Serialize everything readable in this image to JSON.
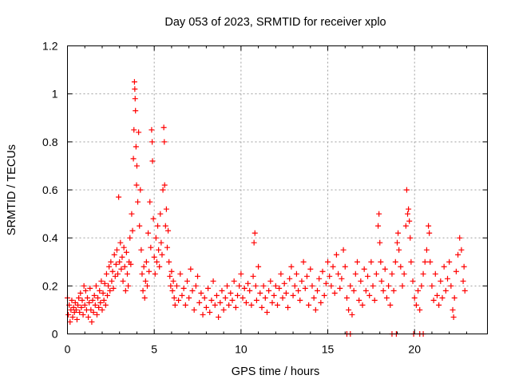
{
  "chart_data": {
    "type": "scatter",
    "title": "Day 053 of 2023, SRMTID for receiver xplo",
    "xlabel": "GPS time / hours",
    "ylabel": "SRMTID / TECUs",
    "xlim": [
      0,
      24.2
    ],
    "ylim": [
      0,
      1.2
    ],
    "x_ticks": [
      0,
      5,
      10,
      15,
      20
    ],
    "x_tick_labels": [
      "0",
      "5",
      "10",
      "15",
      "20"
    ],
    "y_ticks": [
      0,
      0.2,
      0.4,
      0.6,
      0.8,
      1.0,
      1.2
    ],
    "y_tick_labels": [
      "0",
      "0.2",
      "0.4",
      "0.6",
      "0.8",
      "1",
      "1.2"
    ],
    "grid": true,
    "marker": "plus",
    "color": "#ff0000",
    "series": [
      {
        "name": "SRMTID",
        "points": [
          [
            0.0,
            0.15
          ],
          [
            0.05,
            0.08
          ],
          [
            0.1,
            0.12
          ],
          [
            0.15,
            0.05
          ],
          [
            0.2,
            0.1
          ],
          [
            0.25,
            0.14
          ],
          [
            0.3,
            0.07
          ],
          [
            0.35,
            0.11
          ],
          [
            0.4,
            0.09
          ],
          [
            0.45,
            0.13
          ],
          [
            0.5,
            0.1
          ],
          [
            0.55,
            0.06
          ],
          [
            0.6,
            0.12
          ],
          [
            0.65,
            0.15
          ],
          [
            0.7,
            0.09
          ],
          [
            0.75,
            0.17
          ],
          [
            0.8,
            0.11
          ],
          [
            0.85,
            0.14
          ],
          [
            0.9,
            0.08
          ],
          [
            0.95,
            0.2
          ],
          [
            1.0,
            0.12
          ],
          [
            1.05,
            0.18
          ],
          [
            1.1,
            0.1
          ],
          [
            1.15,
            0.15
          ],
          [
            1.2,
            0.07
          ],
          [
            1.25,
            0.13
          ],
          [
            1.3,
            0.19
          ],
          [
            1.35,
            0.1
          ],
          [
            1.4,
            0.05
          ],
          [
            1.45,
            0.14
          ],
          [
            1.5,
            0.09
          ],
          [
            1.55,
            0.16
          ],
          [
            1.6,
            0.12
          ],
          [
            1.65,
            0.2
          ],
          [
            1.7,
            0.08
          ],
          [
            1.75,
            0.15
          ],
          [
            1.8,
            0.11
          ],
          [
            1.85,
            0.18
          ],
          [
            1.9,
            0.13
          ],
          [
            1.95,
            0.22
          ],
          [
            2.0,
            0.1
          ],
          [
            2.05,
            0.17
          ],
          [
            2.1,
            0.14
          ],
          [
            2.15,
            0.21
          ],
          [
            2.2,
            0.12
          ],
          [
            2.25,
            0.25
          ],
          [
            2.3,
            0.16
          ],
          [
            2.35,
            0.2
          ],
          [
            2.4,
            0.28
          ],
          [
            2.45,
            0.18
          ],
          [
            2.5,
            0.3
          ],
          [
            2.55,
            0.22
          ],
          [
            2.6,
            0.26
          ],
          [
            2.65,
            0.19
          ],
          [
            2.7,
            0.33
          ],
          [
            2.75,
            0.24
          ],
          [
            2.8,
            0.29
          ],
          [
            2.85,
            0.35
          ],
          [
            2.9,
            0.25
          ],
          [
            2.95,
            0.57
          ],
          [
            3.0,
            0.3
          ],
          [
            3.05,
            0.38
          ],
          [
            3.1,
            0.27
          ],
          [
            3.15,
            0.32
          ],
          [
            3.2,
            0.22
          ],
          [
            3.25,
            0.36
          ],
          [
            3.3,
            0.28
          ],
          [
            3.35,
            0.18
          ],
          [
            3.4,
            0.34
          ],
          [
            3.45,
            0.25
          ],
          [
            3.5,
            0.2
          ],
          [
            3.55,
            0.3
          ],
          [
            3.6,
            0.4
          ],
          [
            3.65,
            0.29
          ],
          [
            3.7,
            0.5
          ],
          [
            3.75,
            0.43
          ],
          [
            3.8,
            0.73
          ],
          [
            3.83,
            0.85
          ],
          [
            3.86,
            1.05
          ],
          [
            3.88,
            1.02
          ],
          [
            3.9,
            0.98
          ],
          [
            3.92,
            0.93
          ],
          [
            3.95,
            0.78
          ],
          [
            3.98,
            0.62
          ],
          [
            4.0,
            0.7
          ],
          [
            4.05,
            0.55
          ],
          [
            4.1,
            0.84
          ],
          [
            4.15,
            0.45
          ],
          [
            4.2,
            0.6
          ],
          [
            4.25,
            0.35
          ],
          [
            4.3,
            0.25
          ],
          [
            4.35,
            0.18
          ],
          [
            4.4,
            0.28
          ],
          [
            4.45,
            0.15
          ],
          [
            4.5,
            0.22
          ],
          [
            4.55,
            0.3
          ],
          [
            4.6,
            0.2
          ],
          [
            4.65,
            0.42
          ],
          [
            4.7,
            0.26
          ],
          [
            4.75,
            0.55
          ],
          [
            4.8,
            0.36
          ],
          [
            4.85,
            0.85
          ],
          [
            4.88,
            0.8
          ],
          [
            4.9,
            0.72
          ],
          [
            4.95,
            0.48
          ],
          [
            5.0,
            0.32
          ],
          [
            5.05,
            0.25
          ],
          [
            5.1,
            0.4
          ],
          [
            5.15,
            0.3
          ],
          [
            5.2,
            0.45
          ],
          [
            5.25,
            0.35
          ],
          [
            5.3,
            0.28
          ],
          [
            5.35,
            0.5
          ],
          [
            5.4,
            0.38
          ],
          [
            5.45,
            0.33
          ],
          [
            5.5,
            0.6
          ],
          [
            5.55,
            0.86
          ],
          [
            5.58,
            0.8
          ],
          [
            5.6,
            0.62
          ],
          [
            5.65,
            0.45
          ],
          [
            5.7,
            0.52
          ],
          [
            5.75,
            0.36
          ],
          [
            5.8,
            0.43
          ],
          [
            5.85,
            0.3
          ],
          [
            5.9,
            0.24
          ],
          [
            5.95,
            0.2
          ],
          [
            6.0,
            0.26
          ],
          [
            6.05,
            0.18
          ],
          [
            6.1,
            0.22
          ],
          [
            6.15,
            0.15
          ],
          [
            6.2,
            0.12
          ],
          [
            6.3,
            0.2
          ],
          [
            6.4,
            0.14
          ],
          [
            6.5,
            0.25
          ],
          [
            6.6,
            0.16
          ],
          [
            6.7,
            0.19
          ],
          [
            6.8,
            0.12
          ],
          [
            6.9,
            0.22
          ],
          [
            7.0,
            0.15
          ],
          [
            7.1,
            0.27
          ],
          [
            7.2,
            0.18
          ],
          [
            7.3,
            0.1
          ],
          [
            7.4,
            0.2
          ],
          [
            7.5,
            0.24
          ],
          [
            7.6,
            0.13
          ],
          [
            7.7,
            0.17
          ],
          [
            7.8,
            0.08
          ],
          [
            7.9,
            0.15
          ],
          [
            8.0,
            0.11
          ],
          [
            8.1,
            0.19
          ],
          [
            8.2,
            0.09
          ],
          [
            8.3,
            0.14
          ],
          [
            8.4,
            0.22
          ],
          [
            8.5,
            0.12
          ],
          [
            8.6,
            0.16
          ],
          [
            8.7,
            0.07
          ],
          [
            8.8,
            0.13
          ],
          [
            8.9,
            0.18
          ],
          [
            9.0,
            0.1
          ],
          [
            9.1,
            0.15
          ],
          [
            9.2,
            0.2
          ],
          [
            9.3,
            0.12
          ],
          [
            9.4,
            0.17
          ],
          [
            9.5,
            0.14
          ],
          [
            9.6,
            0.22
          ],
          [
            9.7,
            0.11
          ],
          [
            9.8,
            0.16
          ],
          [
            9.9,
            0.2
          ],
          [
            10.0,
            0.25
          ],
          [
            10.1,
            0.15
          ],
          [
            10.2,
            0.19
          ],
          [
            10.3,
            0.13
          ],
          [
            10.4,
            0.21
          ],
          [
            10.5,
            0.18
          ],
          [
            10.6,
            0.12
          ],
          [
            10.7,
            0.24
          ],
          [
            10.75,
            0.38
          ],
          [
            10.8,
            0.42
          ],
          [
            10.85,
            0.2
          ],
          [
            10.9,
            0.14
          ],
          [
            11.0,
            0.28
          ],
          [
            11.1,
            0.17
          ],
          [
            11.2,
            0.11
          ],
          [
            11.3,
            0.2
          ],
          [
            11.4,
            0.15
          ],
          [
            11.5,
            0.09
          ],
          [
            11.6,
            0.18
          ],
          [
            11.7,
            0.22
          ],
          [
            11.8,
            0.13
          ],
          [
            11.9,
            0.16
          ],
          [
            12.0,
            0.2
          ],
          [
            12.1,
            0.12
          ],
          [
            12.2,
            0.19
          ],
          [
            12.3,
            0.25
          ],
          [
            12.4,
            0.15
          ],
          [
            12.5,
            0.21
          ],
          [
            12.6,
            0.17
          ],
          [
            12.7,
            0.11
          ],
          [
            12.8,
            0.23
          ],
          [
            12.9,
            0.28
          ],
          [
            13.0,
            0.16
          ],
          [
            13.1,
            0.2
          ],
          [
            13.2,
            0.25
          ],
          [
            13.3,
            0.18
          ],
          [
            13.4,
            0.14
          ],
          [
            13.5,
            0.22
          ],
          [
            13.6,
            0.3
          ],
          [
            13.7,
            0.19
          ],
          [
            13.8,
            0.24
          ],
          [
            13.9,
            0.12
          ],
          [
            14.0,
            0.27
          ],
          [
            14.1,
            0.2
          ],
          [
            14.2,
            0.15
          ],
          [
            14.3,
            0.1
          ],
          [
            14.4,
            0.18
          ],
          [
            14.5,
            0.23
          ],
          [
            14.6,
            0.13
          ],
          [
            14.7,
            0.26
          ],
          [
            14.8,
            0.16
          ],
          [
            14.9,
            0.21
          ],
          [
            15.0,
            0.3
          ],
          [
            15.1,
            0.24
          ],
          [
            15.2,
            0.2
          ],
          [
            15.3,
            0.28
          ],
          [
            15.4,
            0.17
          ],
          [
            15.5,
            0.33
          ],
          [
            15.6,
            0.25
          ],
          [
            15.7,
            0.19
          ],
          [
            15.8,
            0.23
          ],
          [
            15.9,
            0.35
          ],
          [
            16.0,
            0.28
          ],
          [
            16.1,
            0.15
          ],
          [
            16.2,
            0.1
          ],
          [
            16.3,
            0.2
          ],
          [
            16.4,
            0.08
          ],
          [
            16.5,
            0.18
          ],
          [
            16.6,
            0.25
          ],
          [
            16.7,
            0.3
          ],
          [
            16.8,
            0.14
          ],
          [
            16.9,
            0.22
          ],
          [
            17.0,
            0.12
          ],
          [
            17.1,
            0.27
          ],
          [
            17.2,
            0.18
          ],
          [
            17.3,
            0.24
          ],
          [
            17.4,
            0.16
          ],
          [
            17.5,
            0.3
          ],
          [
            17.6,
            0.2
          ],
          [
            17.7,
            0.14
          ],
          [
            17.8,
            0.25
          ],
          [
            17.9,
            0.45
          ],
          [
            17.95,
            0.5
          ],
          [
            18.0,
            0.38
          ],
          [
            18.05,
            0.3
          ],
          [
            18.1,
            0.22
          ],
          [
            18.2,
            0.18
          ],
          [
            18.3,
            0.27
          ],
          [
            18.4,
            0.15
          ],
          [
            18.5,
            0.2
          ],
          [
            18.6,
            0.12
          ],
          [
            18.7,
            0.25
          ],
          [
            18.8,
            0.18
          ],
          [
            18.9,
            0.3
          ],
          [
            19.0,
            0.38
          ],
          [
            19.05,
            0.42
          ],
          [
            19.1,
            0.35
          ],
          [
            19.2,
            0.28
          ],
          [
            19.3,
            0.2
          ],
          [
            19.4,
            0.25
          ],
          [
            19.5,
            0.45
          ],
          [
            19.55,
            0.6
          ],
          [
            19.6,
            0.5
          ],
          [
            19.65,
            0.52
          ],
          [
            19.7,
            0.47
          ],
          [
            19.75,
            0.4
          ],
          [
            19.8,
            0.3
          ],
          [
            19.9,
            0.22
          ],
          [
            20.0,
            0.15
          ],
          [
            20.1,
            0.12
          ],
          [
            20.2,
            0.18
          ],
          [
            20.3,
            0.1
          ],
          [
            20.4,
            0.2
          ],
          [
            20.5,
            0.25
          ],
          [
            20.6,
            0.3
          ],
          [
            20.7,
            0.35
          ],
          [
            20.8,
            0.45
          ],
          [
            20.85,
            0.42
          ],
          [
            20.9,
            0.3
          ],
          [
            21.0,
            0.2
          ],
          [
            21.1,
            0.14
          ],
          [
            21.2,
            0.25
          ],
          [
            21.3,
            0.16
          ],
          [
            21.4,
            0.12
          ],
          [
            21.5,
            0.22
          ],
          [
            21.6,
            0.15
          ],
          [
            21.7,
            0.28
          ],
          [
            21.8,
            0.18
          ],
          [
            21.9,
            0.23
          ],
          [
            22.0,
            0.3
          ],
          [
            22.1,
            0.2
          ],
          [
            22.2,
            0.1
          ],
          [
            22.25,
            0.07
          ],
          [
            22.3,
            0.15
          ],
          [
            22.4,
            0.26
          ],
          [
            22.5,
            0.33
          ],
          [
            22.6,
            0.4
          ],
          [
            22.7,
            0.35
          ],
          [
            22.8,
            0.22
          ],
          [
            22.85,
            0.28
          ],
          [
            22.9,
            0.18
          ],
          [
            16.1,
            0.0
          ],
          [
            16.3,
            0.0
          ],
          [
            18.7,
            0.0
          ],
          [
            18.95,
            0.0
          ],
          [
            19.95,
            0.0
          ],
          [
            20.3,
            0.0
          ],
          [
            20.5,
            0.0
          ]
        ]
      }
    ]
  }
}
